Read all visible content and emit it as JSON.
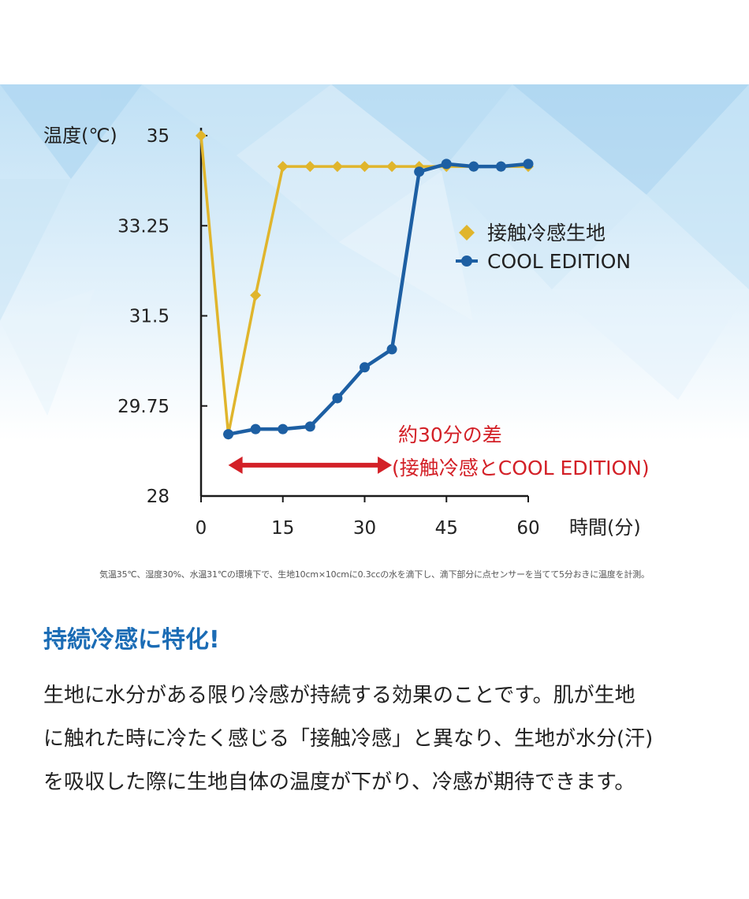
{
  "chart_data": {
    "type": "line",
    "ylabel": "温度(℃)",
    "xlabel": "時間(分)",
    "x": [
      0,
      5,
      10,
      15,
      20,
      25,
      30,
      35,
      40,
      45,
      50,
      55,
      60
    ],
    "xticks": [
      "0",
      "15",
      "30",
      "45",
      "60"
    ],
    "xtick_values": [
      0,
      15,
      30,
      45,
      60
    ],
    "yticks": [
      "35",
      "33.25",
      "31.5",
      "29.75",
      "28"
    ],
    "ytick_values": [
      35,
      33.25,
      31.5,
      29.75,
      28
    ],
    "xlim": [
      0,
      60
    ],
    "ylim": [
      28,
      35
    ],
    "grid": false,
    "legend_position": "right",
    "series": [
      {
        "name": "接触冷感生地",
        "marker": "diamond",
        "color": "#e0b52c",
        "values": [
          35.0,
          29.2,
          31.9,
          34.4,
          34.4,
          34.4,
          34.4,
          34.4,
          34.4,
          34.4,
          34.4,
          34.4,
          34.4
        ]
      },
      {
        "name": "COOL EDITION",
        "marker": "circle",
        "color": "#1d5fa3",
        "values": [
          null,
          29.2,
          29.3,
          29.3,
          29.35,
          29.9,
          30.5,
          30.85,
          34.3,
          34.45,
          34.4,
          34.4,
          34.45
        ]
      }
    ],
    "annotation": {
      "line1": "約30分の差",
      "line2": "(接触冷感とCOOL EDITION)",
      "arrow_from_x": 5,
      "arrow_to_x": 35,
      "arrow_y": 28.6,
      "color": "#d32027"
    }
  },
  "footnote": "気温35℃、湿度30%、水温31℃の環境下で、生地10cm×10cmに0.3ccの水を滴下し、滴下部分に点センサーを当てて5分おきに温度を計測。",
  "heading": "持続冷感に特化!",
  "body_lines": [
    "生地に水分がある限り冷感が持続する効果のことです。肌が生地",
    "に触れた時に冷たく感じる「接触冷感」と異なり、生地が水分(汗)",
    "を吸収した際に生地自体の温度が下がり、冷感が期待できます。"
  ]
}
